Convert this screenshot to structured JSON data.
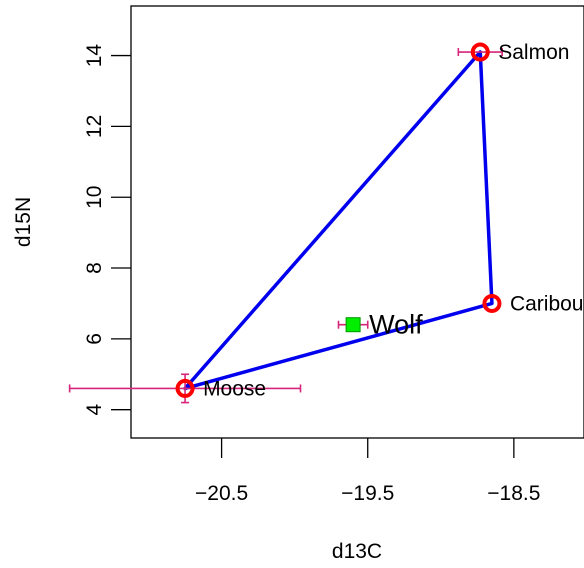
{
  "chart_data": {
    "type": "scatter",
    "xlabel": "d13C",
    "ylabel": "d15N",
    "xlim": [
      -21.12,
      -18.02
    ],
    "ylim": [
      3.2,
      15.4
    ],
    "x_ticks": [
      -20.5,
      -19.5,
      -18.5
    ],
    "x_tick_labels": [
      "−20.5",
      "−19.5",
      "−18.5"
    ],
    "y_ticks": [
      4,
      6,
      8,
      10,
      12,
      14
    ],
    "y_tick_labels": [
      "4",
      "6",
      "8",
      "10",
      "12",
      "14"
    ],
    "grid": false,
    "sources": [
      {
        "name": "Salmon",
        "x": -18.73,
        "y": 14.1,
        "x_err": 0.15,
        "y_err": 0.0
      },
      {
        "name": "Caribou",
        "x": -18.65,
        "y": 7.0,
        "x_err": 0.0,
        "y_err": 0.0
      },
      {
        "name": "Moose",
        "x": -20.75,
        "y": 4.6,
        "x_err": 0.79,
        "y_err": 0.4
      }
    ],
    "mixing_polygon": [
      "Salmon",
      "Caribou",
      "Moose"
    ],
    "consumers": [
      {
        "name": "Wolf",
        "x": -19.6,
        "y": 6.4,
        "x_err": 0.1,
        "y_err": 0.0
      }
    ],
    "colors": {
      "polygon": "#0000ee",
      "source_marker": "#ff0000",
      "consumer_marker": "#00ee00",
      "error_bar": "#d6257a"
    }
  }
}
